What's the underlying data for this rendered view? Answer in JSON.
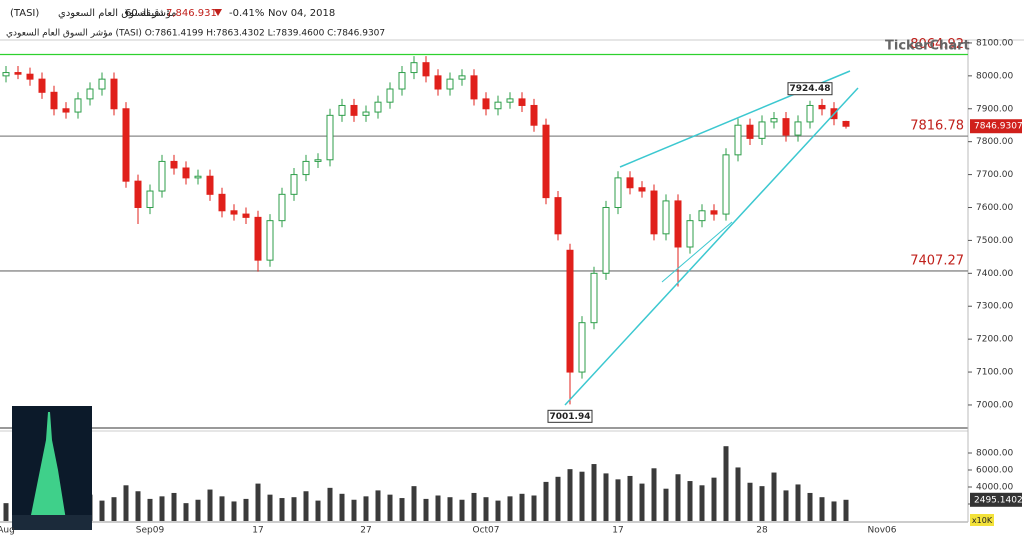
{
  "header": {
    "name": "مؤشر السوق العام السعودي",
    "symbol": "(TASI)",
    "interval": "60 دقيقة",
    "last": "7,846.931",
    "change": "-0.41%",
    "date": "Nov 04, 2018",
    "ohlc_line": "مؤشر السوق العام السعودي (TASI) O:7861.4199 H:7863.4302 L:7839.4600 C:7846.9307",
    "logo": "TickerChart"
  },
  "chart_data": {
    "type": "candlestick",
    "categories": [
      "Aug",
      null,
      null,
      null,
      null,
      null,
      null,
      null,
      null,
      null,
      null,
      null,
      "Sep09",
      null,
      null,
      null,
      null,
      null,
      null,
      null,
      null,
      "17",
      null,
      null,
      null,
      null,
      null,
      null,
      null,
      null,
      "27",
      null,
      null,
      null,
      null,
      null,
      null,
      null,
      null,
      null,
      "Oct07",
      null,
      null,
      null,
      null,
      null,
      null,
      null,
      null,
      null,
      null,
      "17",
      null,
      null,
      null,
      null,
      null,
      null,
      null,
      null,
      null,
      null,
      null,
      "28",
      null,
      null,
      null,
      null,
      null,
      null,
      null,
      null,
      null,
      "Nov06"
    ],
    "open": [
      8000,
      8010,
      8005,
      7990,
      7950,
      7900,
      7890,
      7930,
      7960,
      7990,
      7900,
      7680,
      7600,
      7650,
      7740,
      7720,
      7690,
      7695,
      7640,
      7590,
      7580,
      7570,
      7440,
      7560,
      7640,
      7700,
      7740,
      7745,
      7880,
      7910,
      7880,
      7890,
      7920,
      7960,
      8010,
      8040,
      8000,
      7960,
      7990,
      8000,
      7930,
      7900,
      7920,
      7930,
      7910,
      7850,
      7630,
      7470,
      7100,
      7250,
      7400,
      7600,
      7690,
      7660,
      7650,
      7520,
      7620,
      7480,
      7560,
      7590,
      7580,
      7760,
      7850,
      7810,
      7860,
      7870,
      7820,
      7860,
      7910,
      7900,
      7861.4199,
      null,
      null,
      null
    ],
    "high": [
      8030,
      8030,
      8025,
      8010,
      7970,
      7920,
      7950,
      7980,
      8010,
      8010,
      7920,
      7700,
      7670,
      7760,
      7760,
      7740,
      7715,
      7715,
      7660,
      7610,
      7600,
      7590,
      7580,
      7660,
      7720,
      7760,
      7765,
      7900,
      7930,
      7930,
      7910,
      7940,
      7980,
      8030,
      8060,
      8060,
      8020,
      8010,
      8020,
      8020,
      7950,
      7940,
      7950,
      7950,
      7930,
      7870,
      7650,
      7490,
      7270,
      7420,
      7620,
      7710,
      7710,
      7680,
      7670,
      7640,
      7640,
      7580,
      7610,
      7610,
      7780,
      7870,
      7870,
      7880,
      7890,
      7890,
      7880,
      7924.48,
      7930,
      7920,
      7863.4302,
      null,
      null,
      null
    ],
    "low": [
      7980,
      7990,
      7970,
      7930,
      7880,
      7870,
      7870,
      7910,
      7940,
      7880,
      7660,
      7550,
      7580,
      7630,
      7700,
      7670,
      7670,
      7620,
      7570,
      7560,
      7550,
      7405,
      7420,
      7540,
      7620,
      7680,
      7720,
      7725,
      7860,
      7860,
      7860,
      7870,
      7900,
      7940,
      7990,
      7980,
      7940,
      7940,
      7970,
      7910,
      7880,
      7880,
      7900,
      7890,
      7830,
      7610,
      7500,
      7001.94,
      7080,
      7230,
      7380,
      7580,
      7640,
      7630,
      7500,
      7500,
      7360,
      7460,
      7540,
      7560,
      7560,
      7740,
      7790,
      7790,
      7840,
      7800,
      7800,
      7840,
      7880,
      7850,
      7839.46,
      null,
      null,
      null
    ],
    "close": [
      8010,
      8005,
      7990,
      7950,
      7900,
      7890,
      7930,
      7960,
      7990,
      7900,
      7680,
      7600,
      7650,
      7740,
      7720,
      7690,
      7695,
      7640,
      7590,
      7580,
      7570,
      7440,
      7560,
      7640,
      7700,
      7740,
      7745,
      7880,
      7910,
      7880,
      7890,
      7920,
      7960,
      8010,
      8040,
      8000,
      7960,
      7990,
      8000,
      7930,
      7900,
      7920,
      7930,
      7910,
      7850,
      7630,
      7520,
      7100,
      7250,
      7400,
      7600,
      7690,
      7660,
      7650,
      7520,
      7620,
      7480,
      7560,
      7590,
      7580,
      7760,
      7850,
      7810,
      7860,
      7870,
      7820,
      7860,
      7910,
      7900,
      7870,
      7846.9307,
      null,
      null,
      null
    ],
    "up_color": "#2e9e4a",
    "down_color": "#e0201b",
    "ylim": [
      6930,
      8115
    ],
    "yticks": [
      {
        "value": 7000,
        "label": "7000.00"
      },
      {
        "value": 7100,
        "label": "7100.00"
      },
      {
        "value": 7200,
        "label": "7200.00"
      },
      {
        "value": 7300,
        "label": "7300.00"
      },
      {
        "value": 7400,
        "label": "7400.00"
      },
      {
        "value": 7500,
        "label": "7500.00"
      },
      {
        "value": 7600,
        "label": "7600.00"
      },
      {
        "value": 7700,
        "label": "7700.00"
      },
      {
        "value": 7800,
        "label": "7800.00"
      },
      {
        "value": 7900,
        "label": "7900.00"
      },
      {
        "value": 8000,
        "label": "8000.00"
      },
      {
        "value": 8100,
        "label": "8100.00"
      }
    ],
    "levels": [
      {
        "value": 8064.92,
        "color": "#2ed12e"
      },
      {
        "value": 7816.78,
        "color": "#888888"
      },
      {
        "value": 7407.27,
        "color": "#888888"
      }
    ],
    "annotations": [
      7924.48,
      7001.94
    ],
    "volume": [
      2100,
      2600,
      1800,
      3000,
      2200,
      2500,
      1900,
      3100,
      2400,
      2800,
      4200,
      3500,
      2600,
      2900,
      3300,
      2100,
      2500,
      3700,
      2900,
      2300,
      2600,
      4400,
      3100,
      2700,
      2800,
      3500,
      2400,
      3900,
      3200,
      2500,
      2900,
      3600,
      3100,
      2700,
      4100,
      2600,
      3000,
      2800,
      2500,
      3300,
      2800,
      2400,
      2900,
      3200,
      3000,
      4600,
      5200,
      6100,
      5800,
      6700,
      5600,
      4900,
      5300,
      4400,
      6200,
      3800,
      5500,
      4700,
      4200,
      5100,
      8800,
      6300,
      4500,
      4100,
      5700,
      3600,
      4300,
      3300,
      2800,
      2300,
      2495.1402,
      null,
      null,
      null
    ],
    "volume_color": "#3a3a3a",
    "vlim": [
      0,
      9000
    ],
    "vticks": [
      {
        "value": 2000,
        "label": "2000.00"
      },
      {
        "value": 4000,
        "label": "4000.00"
      },
      {
        "value": 6000,
        "label": "6000.00"
      },
      {
        "value": 8000,
        "label": "8000.00"
      }
    ],
    "volume_unit": "x10K"
  }
}
